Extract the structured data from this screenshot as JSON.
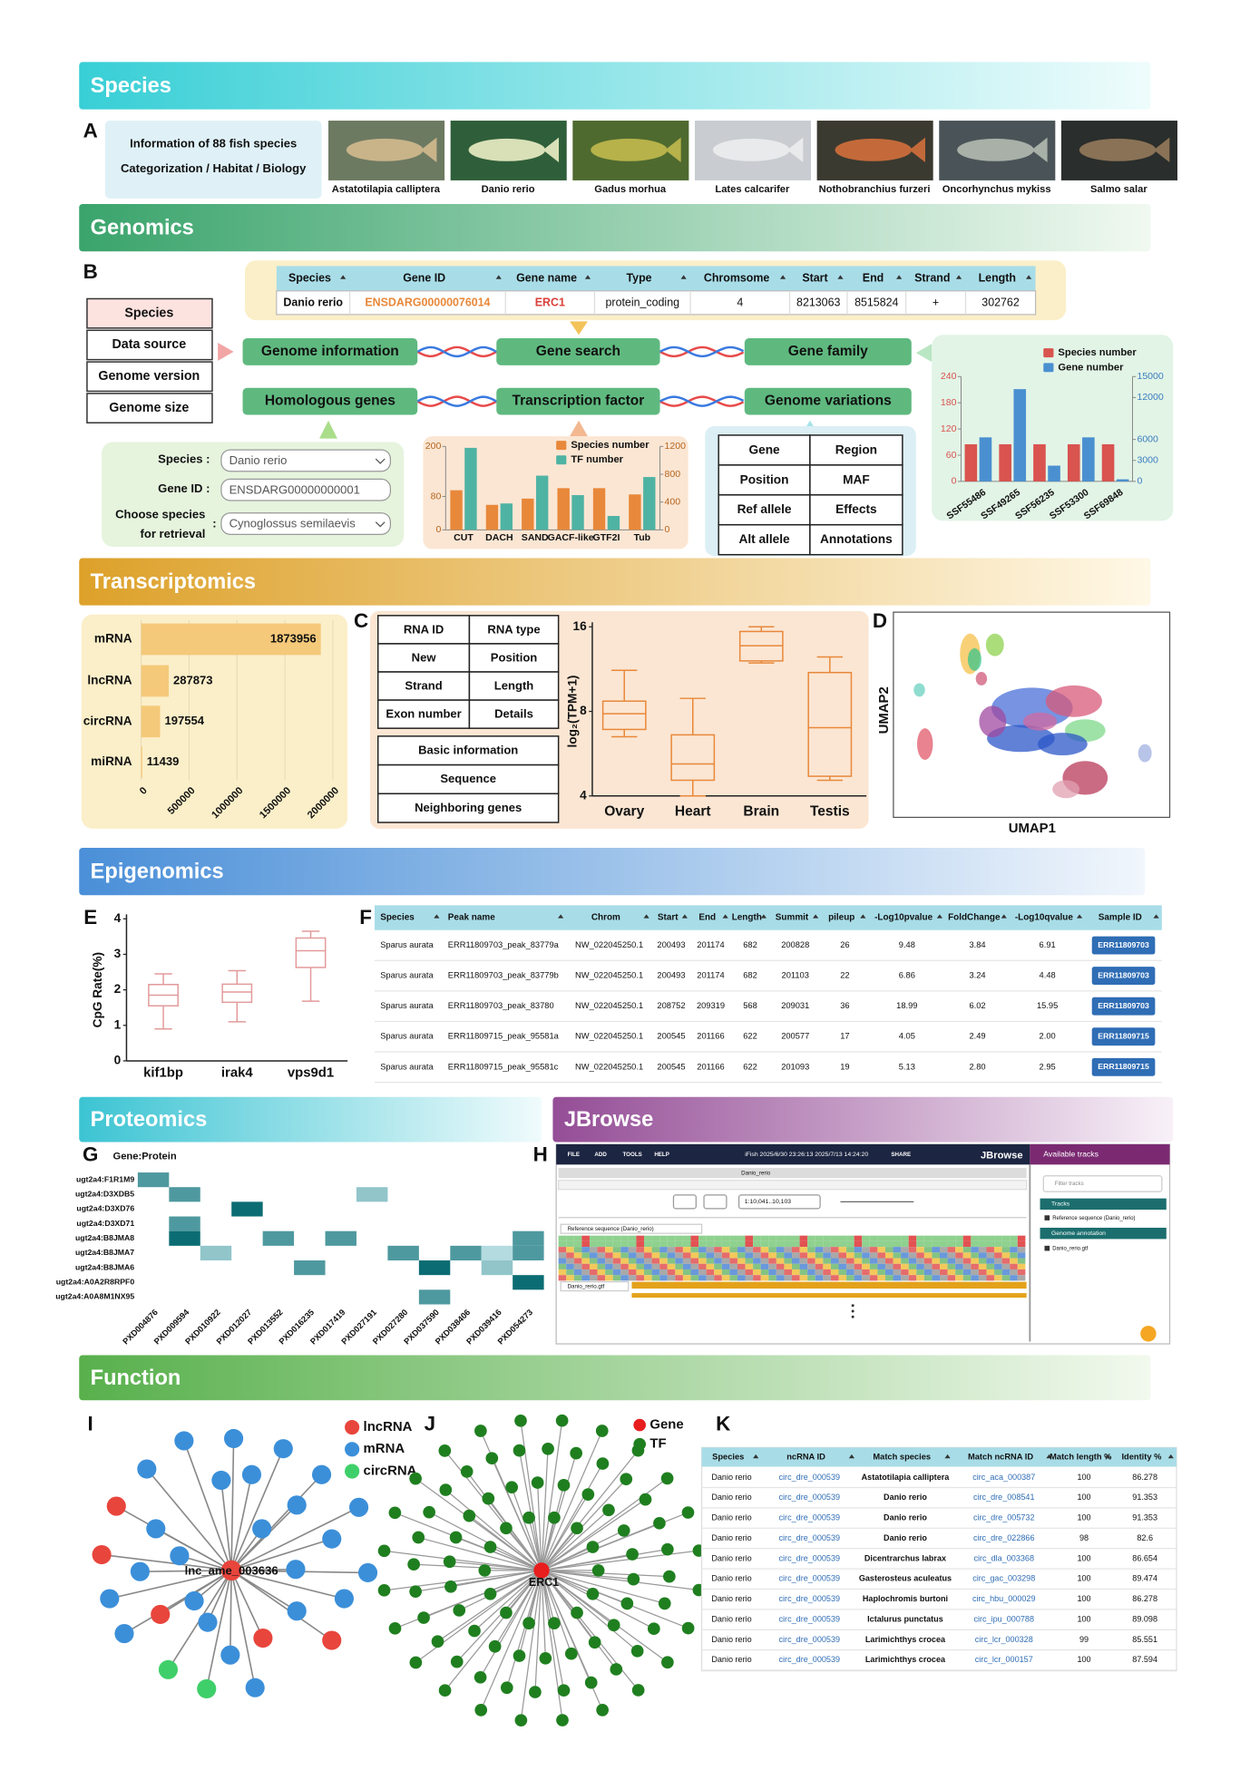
{
  "sections": {
    "species": "Species",
    "genomics": "Genomics",
    "transcriptomics": "Transcriptomics",
    "epigenomics": "Epigenomics",
    "proteomics": "Proteomics",
    "jbrowse": "JBrowse",
    "function": "Function"
  },
  "panel_labels": [
    "A",
    "B",
    "C",
    "D",
    "E",
    "F",
    "G",
    "H",
    "I",
    "J",
    "K"
  ],
  "species_panel": {
    "info": [
      "Information of 88 fish species",
      "Categorization / Habitat / Biology"
    ],
    "fish": [
      "Astatotilapia calliptera",
      "Danio rerio",
      "Gadus morhua",
      "Lates calcarifer",
      "Nothobranchius furzeri",
      "Oncorhynchus mykiss",
      "Salmo salar"
    ]
  },
  "gene_table": {
    "header": [
      "Species",
      "Gene ID",
      "Gene name",
      "Type",
      "Chromsome",
      "Start",
      "End",
      "Strand",
      "Length"
    ],
    "row": [
      "Danio rerio",
      "ENSDARG00000076014",
      "ERC1",
      "protein_coding",
      "4",
      "8213063",
      "8515824",
      "+",
      "302762"
    ]
  },
  "genome_fields": [
    "Species",
    "Data source",
    "Genome version",
    "Genome size"
  ],
  "modules": [
    "Genome information",
    "Gene search",
    "Gene family",
    "Homologous genes",
    "Transcription factor",
    "Genome variations"
  ],
  "homolog_form": {
    "labels": [
      "Species :",
      "Gene ID :",
      "Choose species",
      "for retrieval",
      ":"
    ],
    "inputs": [
      "Danio rerio",
      "ENSDARG00000000001",
      "Cynoglossus semilaevis"
    ]
  },
  "variation_fields": [
    "Gene",
    "Region",
    "Position",
    "MAF",
    "Ref allele",
    "Effects",
    "Alt allele",
    "Annotations"
  ],
  "tf_chart": {
    "type": "bar",
    "categories": [
      "CUT",
      "DACH",
      "SAND",
      "GACF-like",
      "GTF2I",
      "Tub"
    ],
    "series": [
      {
        "name": "Species number",
        "color": "#e8883a",
        "values": [
          95,
          60,
          75,
          100,
          100,
          85
        ]
      },
      {
        "name": "TF number",
        "color": "#4fb3a3",
        "values": [
          1180,
          380,
          780,
          500,
          200,
          760
        ],
        "axis": "y2"
      }
    ],
    "ylim": [
      0,
      200
    ],
    "yticks": [
      0,
      80,
      200
    ],
    "y2lim": [
      0,
      1200
    ],
    "y2ticks": [
      0,
      400,
      800,
      1200
    ]
  },
  "family_chart": {
    "type": "bar",
    "categories": [
      "SSF55486",
      "SSF49265",
      "SSF56235",
      "SSF53300",
      "SSF69848"
    ],
    "series": [
      {
        "name": "Species number",
        "color": "#d9534f",
        "values": [
          85,
          85,
          85,
          85,
          85
        ]
      },
      {
        "name": "Gene number",
        "color": "#4a90d0",
        "values": [
          6300,
          13200,
          2250,
          6300,
          300
        ],
        "axis": "y2"
      }
    ],
    "ylim": [
      0,
      240
    ],
    "yticks": [
      0,
      60,
      120,
      180,
      240
    ],
    "y2lim": [
      0,
      15000
    ],
    "y2ticks": [
      0,
      3000,
      6000,
      12000,
      15000
    ]
  },
  "rna_chart": {
    "type": "bar",
    "orientation": "horizontal",
    "categories": [
      "mRNA",
      "lncRNA",
      "circRNA",
      "miRNA"
    ],
    "values": [
      1873956,
      287873,
      197554,
      11439
    ],
    "color": "#f5c97a",
    "xlim": [
      0,
      2000000
    ],
    "xticks": [
      0,
      500000,
      1000000,
      1500000,
      2000000
    ],
    "grid": true
  },
  "rna_fields": [
    "RNA ID",
    "RNA type",
    "New",
    "Position",
    "Strand",
    "Length",
    "Exon number",
    "Details"
  ],
  "rna_sections": [
    "Basic information",
    "Sequence",
    "Neighboring genes"
  ],
  "expression_chart": {
    "type": "box",
    "ylabel": "log₂(TPM+1)",
    "categories": [
      "Ovary",
      "Heart",
      "Brain",
      "Testis"
    ],
    "boxes": [
      [
        6.5,
        6.9,
        7.85,
        8.7,
        11.2
      ],
      [
        4.0,
        4.55,
        5.2,
        6.6,
        8.9
      ],
      [
        11.9,
        12.1,
        13.7,
        15.4,
        16
      ],
      [
        4.55,
        4.7,
        7.0,
        11.0,
        12.5
      ]
    ],
    "ylim": [
      4,
      16
    ],
    "yticks": [
      4,
      8,
      16
    ],
    "log_base": 2,
    "color": "#e8883a"
  },
  "umap": {
    "xlabel": "UMAP1",
    "ylabel": "UMAP2"
  },
  "cpg_chart": {
    "type": "box",
    "ylabel": "CpG Rate(%)",
    "categories": [
      "kif1bp",
      "irak4",
      "vps9d1"
    ],
    "boxes": [
      [
        0.9,
        1.55,
        1.85,
        2.15,
        2.45
      ],
      [
        1.1,
        1.65,
        1.94,
        2.16,
        2.54
      ],
      [
        1.68,
        2.63,
        3.1,
        3.46,
        3.65
      ]
    ],
    "ylim": [
      0,
      4
    ],
    "yticks": [
      0,
      1,
      2,
      3,
      4
    ],
    "color": "#e39a9a"
  },
  "peak_table": {
    "header": [
      "Species",
      "Peak name",
      "Chrom",
      "Start",
      "End",
      "Length",
      "Summit",
      "pileup",
      "-Log10pvalue",
      "FoldChange",
      "-Log10qvalue",
      "Sample ID"
    ],
    "rows": [
      [
        "Sparus aurata",
        "ERR11809703_peak_83779a",
        "NW_022045250.1",
        "200493",
        "201174",
        "682",
        "200828",
        "26",
        "9.48",
        "3.84",
        "6.91",
        "ERR11809703"
      ],
      [
        "Sparus aurata",
        "ERR11809703_peak_83779b",
        "NW_022045250.1",
        "200493",
        "201174",
        "682",
        "201103",
        "22",
        "6.86",
        "3.24",
        "4.48",
        "ERR11809703"
      ],
      [
        "Sparus aurata",
        "ERR11809703_peak_83780",
        "NW_022045250.1",
        "208752",
        "209319",
        "568",
        "209031",
        "36",
        "18.99",
        "6.02",
        "15.95",
        "ERR11809703"
      ],
      [
        "Sparus aurata",
        "ERR11809715_peak_95581a",
        "NW_022045250.1",
        "200545",
        "201166",
        "622",
        "200577",
        "17",
        "4.05",
        "2.49",
        "2.00",
        "ERR11809715"
      ],
      [
        "Sparus aurata",
        "ERR11809715_peak_95581c",
        "NW_022045250.1",
        "200545",
        "201166",
        "622",
        "201093",
        "19",
        "5.13",
        "2.80",
        "2.95",
        "ERR11809715"
      ]
    ]
  },
  "heatmap": {
    "type": "heatmap",
    "title": "Gene:Protein",
    "rows": [
      "ugt2a4:F1R1M9",
      "ugt2a4:D3XDB5",
      "ugt2a4:D3XD76",
      "ugt2a4:D3XD71",
      "ugt2a4:B8JMA8",
      "ugt2a4:B8JMA7",
      "ugt2a4:B8JMA6",
      "ugt2a4:A0A2R8RPF0",
      "ugt2a4:A0A8M1NX95"
    ],
    "columns": [
      "PXD004876",
      "PXD009594",
      "PXD010922",
      "PXD012027",
      "PXD013552",
      "PXD016235",
      "PXD017419",
      "PXD027191",
      "PXD027280",
      "PXD037590",
      "PXD038406",
      "PXD039416",
      "PXD054273"
    ],
    "values": [
      [
        2,
        null,
        null,
        null,
        null,
        null,
        null,
        null,
        null,
        null,
        null,
        null,
        null
      ],
      [
        null,
        2,
        null,
        null,
        null,
        null,
        null,
        1,
        null,
        null,
        null,
        null,
        null
      ],
      [
        null,
        null,
        null,
        3,
        null,
        null,
        null,
        null,
        null,
        null,
        null,
        null,
        null
      ],
      [
        null,
        2,
        null,
        null,
        null,
        null,
        null,
        null,
        null,
        null,
        null,
        null,
        null
      ],
      [
        null,
        3,
        null,
        null,
        2,
        null,
        2,
        null,
        null,
        null,
        null,
        null,
        2
      ],
      [
        null,
        null,
        1,
        null,
        null,
        null,
        null,
        null,
        2,
        null,
        2,
        0.5,
        2
      ],
      [
        null,
        null,
        null,
        null,
        null,
        2,
        null,
        null,
        null,
        3,
        null,
        1,
        null
      ],
      [
        null,
        null,
        null,
        null,
        null,
        null,
        null,
        null,
        null,
        null,
        null,
        null,
        3
      ],
      [
        null,
        null,
        null,
        null,
        null,
        null,
        null,
        null,
        null,
        2,
        null,
        null,
        null
      ]
    ],
    "color_low": "#d4f1f6",
    "color_high": "#0b6d73",
    "vmax": 3
  },
  "jbrowse": {
    "menu": [
      "FILE",
      "ADD",
      "TOOLS",
      "HELP"
    ],
    "session": "iFish 2025/6/30 23:26:13 2025/7/13 14:24:20",
    "share": "SHARE",
    "brand": "JBrowse",
    "panel_title": "Available tracks",
    "view_title": "Danio_rerio",
    "locus": "1:10,041..10,103",
    "tracks": [
      "Reference sequence (Danio_rerio)",
      "Danio_rerio.gtf"
    ],
    "filter": "Filter tracks",
    "categories": [
      "Tracks",
      "Genome annotation"
    ],
    "track_list": [
      "Reference sequence (Danio_rerio)",
      "Danio_rerio.gtf"
    ]
  },
  "network_lnc": {
    "legend": [
      {
        "name": "lncRNA",
        "color": "#e8453c"
      },
      {
        "name": "mRNA",
        "color": "#3b8fd9"
      },
      {
        "name": "circRNA",
        "color": "#3fcf6a"
      }
    ],
    "center": "lnc_ame_003636"
  },
  "network_tf": {
    "legend": [
      {
        "name": "Gene",
        "color": "#e81e1e"
      },
      {
        "name": "TF",
        "color": "#1f7f1f"
      }
    ],
    "center": "ERC1"
  },
  "circ_table": {
    "header": [
      "Species",
      "ncRNA ID",
      "Match species",
      "Match ncRNA ID",
      "Match length %",
      "Identity %"
    ],
    "rows": [
      [
        "Danio rerio",
        "circ_dre_000539",
        "Astatotilapia calliptera",
        "circ_aca_000387",
        "100",
        "86.278"
      ],
      [
        "Danio rerio",
        "circ_dre_000539",
        "Danio rerio",
        "circ_dre_008541",
        "100",
        "91.353"
      ],
      [
        "Danio rerio",
        "circ_dre_000539",
        "Danio rerio",
        "circ_dre_005732",
        "100",
        "91.353"
      ],
      [
        "Danio rerio",
        "circ_dre_000539",
        "Danio rerio",
        "circ_dre_022866",
        "98",
        "82.6"
      ],
      [
        "Danio rerio",
        "circ_dre_000539",
        "Dicentrarchus labrax",
        "circ_dla_003368",
        "100",
        "86.654"
      ],
      [
        "Danio rerio",
        "circ_dre_000539",
        "Gasterosteus aculeatus",
        "circ_gac_003298",
        "100",
        "89.474"
      ],
      [
        "Danio rerio",
        "circ_dre_000539",
        "Haplochromis burtoni",
        "circ_hbu_000029",
        "100",
        "86.278"
      ],
      [
        "Danio rerio",
        "circ_dre_000539",
        "Ictalurus punctatus",
        "circ_ipu_000788",
        "100",
        "89.098"
      ],
      [
        "Danio rerio",
        "circ_dre_000539",
        "Larimichthys crocea",
        "circ_lcr_000328",
        "99",
        "85.551"
      ],
      [
        "Danio rerio",
        "circ_dre_000539",
        "Larimichthys crocea",
        "circ_lcr_000157",
        "100",
        "87.594"
      ]
    ]
  }
}
